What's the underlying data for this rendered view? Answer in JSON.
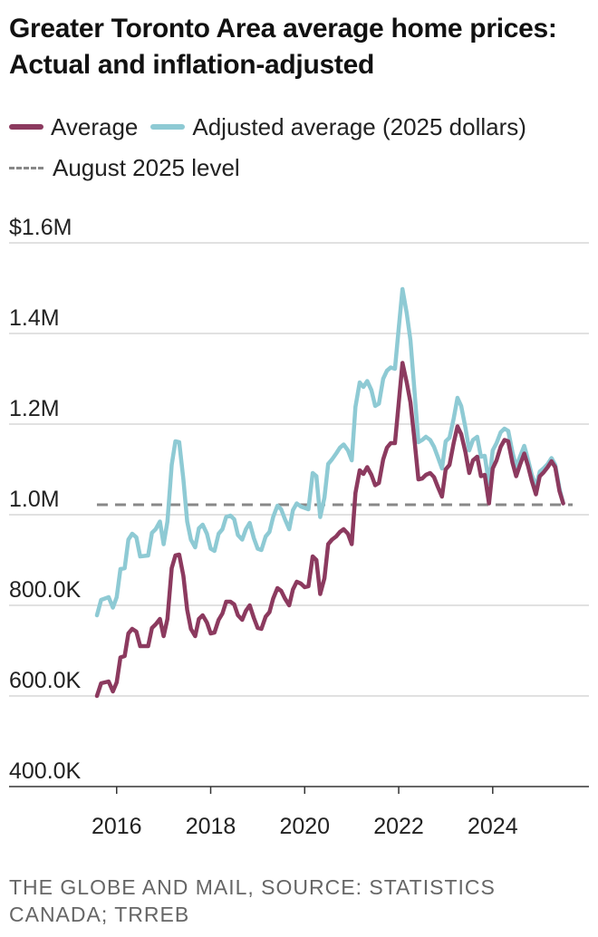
{
  "chart_data": {
    "type": "line",
    "title": "Greater Toronto Area average home prices: Actual and inflation-adjusted",
    "xlabel": "",
    "ylabel": "",
    "xlim": [
      2015.6,
      2025.7
    ],
    "ylim": [
      400000,
      1600000
    ],
    "y_ticks": [
      400000,
      600000,
      800000,
      1000000,
      1200000,
      1400000,
      1600000
    ],
    "y_tick_labels": [
      "400.0K",
      "600.0K",
      "800.0K",
      "1.0M",
      "1.2M",
      "1.4M",
      "$1.6M"
    ],
    "x_ticks": [
      2016,
      2018,
      2020,
      2022,
      2024
    ],
    "x_tick_labels": [
      "2016",
      "2018",
      "2020",
      "2022",
      "2024"
    ],
    "grid": true,
    "reference_line": {
      "name": "August 2025 level",
      "value": 1022000,
      "color": "#888888"
    },
    "series": [
      {
        "name": "Average",
        "color": "#8c3a5f",
        "points": [
          [
            2015.58,
            600000
          ],
          [
            2015.67,
            628000
          ],
          [
            2015.83,
            632000
          ],
          [
            2015.92,
            610000
          ],
          [
            2016.0,
            630000
          ],
          [
            2016.08,
            685000
          ],
          [
            2016.17,
            688000
          ],
          [
            2016.25,
            738000
          ],
          [
            2016.33,
            748000
          ],
          [
            2016.42,
            742000
          ],
          [
            2016.5,
            710000
          ],
          [
            2016.67,
            710000
          ],
          [
            2016.75,
            750000
          ],
          [
            2016.83,
            758000
          ],
          [
            2016.92,
            770000
          ],
          [
            2017.0,
            732000
          ],
          [
            2017.08,
            770000
          ],
          [
            2017.17,
            882000
          ],
          [
            2017.25,
            910000
          ],
          [
            2017.33,
            912000
          ],
          [
            2017.42,
            865000
          ],
          [
            2017.5,
            790000
          ],
          [
            2017.58,
            748000
          ],
          [
            2017.67,
            732000
          ],
          [
            2017.75,
            770000
          ],
          [
            2017.83,
            778000
          ],
          [
            2017.92,
            762000
          ],
          [
            2018.0,
            738000
          ],
          [
            2018.08,
            740000
          ],
          [
            2018.17,
            768000
          ],
          [
            2018.25,
            782000
          ],
          [
            2018.33,
            808000
          ],
          [
            2018.42,
            808000
          ],
          [
            2018.5,
            802000
          ],
          [
            2018.58,
            778000
          ],
          [
            2018.67,
            768000
          ],
          [
            2018.75,
            788000
          ],
          [
            2018.83,
            800000
          ],
          [
            2018.92,
            772000
          ],
          [
            2019.0,
            750000
          ],
          [
            2019.08,
            748000
          ],
          [
            2019.17,
            775000
          ],
          [
            2019.25,
            785000
          ],
          [
            2019.33,
            815000
          ],
          [
            2019.42,
            838000
          ],
          [
            2019.5,
            832000
          ],
          [
            2019.58,
            815000
          ],
          [
            2019.67,
            800000
          ],
          [
            2019.75,
            835000
          ],
          [
            2019.83,
            852000
          ],
          [
            2019.92,
            848000
          ],
          [
            2020.0,
            840000
          ],
          [
            2020.08,
            842000
          ],
          [
            2020.17,
            908000
          ],
          [
            2020.25,
            900000
          ],
          [
            2020.33,
            825000
          ],
          [
            2020.42,
            860000
          ],
          [
            2020.5,
            935000
          ],
          [
            2020.58,
            945000
          ],
          [
            2020.67,
            952000
          ],
          [
            2020.75,
            962000
          ],
          [
            2020.83,
            968000
          ],
          [
            2020.92,
            958000
          ],
          [
            2021.0,
            935000
          ],
          [
            2021.08,
            1048000
          ],
          [
            2021.17,
            1098000
          ],
          [
            2021.25,
            1090000
          ],
          [
            2021.33,
            1105000
          ],
          [
            2021.42,
            1088000
          ],
          [
            2021.5,
            1065000
          ],
          [
            2021.58,
            1070000
          ],
          [
            2021.67,
            1122000
          ],
          [
            2021.75,
            1148000
          ],
          [
            2021.83,
            1158000
          ],
          [
            2021.92,
            1158000
          ],
          [
            2022.0,
            1245000
          ],
          [
            2022.08,
            1335000
          ],
          [
            2022.17,
            1292000
          ],
          [
            2022.25,
            1248000
          ],
          [
            2022.33,
            1170000
          ],
          [
            2022.42,
            1078000
          ],
          [
            2022.5,
            1080000
          ],
          [
            2022.58,
            1088000
          ],
          [
            2022.67,
            1092000
          ],
          [
            2022.75,
            1083000
          ],
          [
            2022.83,
            1062000
          ],
          [
            2022.92,
            1040000
          ],
          [
            2023.0,
            1100000
          ],
          [
            2023.08,
            1110000
          ],
          [
            2023.17,
            1158000
          ],
          [
            2023.25,
            1195000
          ],
          [
            2023.33,
            1178000
          ],
          [
            2023.42,
            1138000
          ],
          [
            2023.5,
            1092000
          ],
          [
            2023.58,
            1120000
          ],
          [
            2023.67,
            1128000
          ],
          [
            2023.75,
            1085000
          ],
          [
            2023.83,
            1088000
          ],
          [
            2023.92,
            1025000
          ],
          [
            2024.0,
            1102000
          ],
          [
            2024.08,
            1120000
          ],
          [
            2024.17,
            1150000
          ],
          [
            2024.25,
            1165000
          ],
          [
            2024.33,
            1162000
          ],
          [
            2024.42,
            1115000
          ],
          [
            2024.5,
            1085000
          ],
          [
            2024.58,
            1110000
          ],
          [
            2024.67,
            1135000
          ],
          [
            2024.75,
            1108000
          ],
          [
            2024.83,
            1075000
          ],
          [
            2024.92,
            1045000
          ],
          [
            2025.0,
            1085000
          ],
          [
            2025.08,
            1093000
          ],
          [
            2025.17,
            1105000
          ],
          [
            2025.25,
            1118000
          ],
          [
            2025.33,
            1105000
          ],
          [
            2025.42,
            1052000
          ],
          [
            2025.5,
            1025000
          ]
        ]
      },
      {
        "name": "Adjusted average (2025 dollars)",
        "color": "#8ecad4",
        "points": [
          [
            2015.58,
            778000
          ],
          [
            2015.67,
            812000
          ],
          [
            2015.83,
            818000
          ],
          [
            2015.92,
            795000
          ],
          [
            2016.0,
            818000
          ],
          [
            2016.08,
            880000
          ],
          [
            2016.17,
            882000
          ],
          [
            2016.25,
            945000
          ],
          [
            2016.33,
            958000
          ],
          [
            2016.42,
            950000
          ],
          [
            2016.5,
            908000
          ],
          [
            2016.67,
            910000
          ],
          [
            2016.75,
            960000
          ],
          [
            2016.83,
            968000
          ],
          [
            2016.92,
            985000
          ],
          [
            2017.0,
            935000
          ],
          [
            2017.08,
            985000
          ],
          [
            2017.17,
            1110000
          ],
          [
            2017.25,
            1162000
          ],
          [
            2017.33,
            1160000
          ],
          [
            2017.42,
            1078000
          ],
          [
            2017.5,
            985000
          ],
          [
            2017.58,
            945000
          ],
          [
            2017.67,
            928000
          ],
          [
            2017.75,
            970000
          ],
          [
            2017.83,
            978000
          ],
          [
            2017.92,
            958000
          ],
          [
            2018.0,
            925000
          ],
          [
            2018.08,
            920000
          ],
          [
            2018.17,
            958000
          ],
          [
            2018.25,
            968000
          ],
          [
            2018.33,
            995000
          ],
          [
            2018.42,
            998000
          ],
          [
            2018.5,
            990000
          ],
          [
            2018.58,
            955000
          ],
          [
            2018.67,
            945000
          ],
          [
            2018.75,
            968000
          ],
          [
            2018.83,
            982000
          ],
          [
            2018.92,
            948000
          ],
          [
            2019.0,
            925000
          ],
          [
            2019.08,
            922000
          ],
          [
            2019.17,
            952000
          ],
          [
            2019.25,
            962000
          ],
          [
            2019.33,
            995000
          ],
          [
            2019.42,
            1020000
          ],
          [
            2019.5,
            1012000
          ],
          [
            2019.58,
            990000
          ],
          [
            2019.67,
            968000
          ],
          [
            2019.75,
            1010000
          ],
          [
            2019.83,
            1025000
          ],
          [
            2019.92,
            1018000
          ],
          [
            2020.0,
            1015000
          ],
          [
            2020.08,
            1012000
          ],
          [
            2020.17,
            1092000
          ],
          [
            2020.25,
            1085000
          ],
          [
            2020.33,
            995000
          ],
          [
            2020.42,
            1038000
          ],
          [
            2020.5,
            1112000
          ],
          [
            2020.58,
            1122000
          ],
          [
            2020.67,
            1135000
          ],
          [
            2020.75,
            1148000
          ],
          [
            2020.83,
            1155000
          ],
          [
            2020.92,
            1142000
          ],
          [
            2021.0,
            1120000
          ],
          [
            2021.08,
            1238000
          ],
          [
            2021.17,
            1292000
          ],
          [
            2021.25,
            1282000
          ],
          [
            2021.33,
            1295000
          ],
          [
            2021.42,
            1275000
          ],
          [
            2021.5,
            1240000
          ],
          [
            2021.58,
            1245000
          ],
          [
            2021.67,
            1300000
          ],
          [
            2021.75,
            1318000
          ],
          [
            2021.83,
            1325000
          ],
          [
            2021.92,
            1322000
          ],
          [
            2022.0,
            1410000
          ],
          [
            2022.08,
            1498000
          ],
          [
            2022.17,
            1445000
          ],
          [
            2022.25,
            1385000
          ],
          [
            2022.33,
            1280000
          ],
          [
            2022.42,
            1160000
          ],
          [
            2022.5,
            1165000
          ],
          [
            2022.58,
            1172000
          ],
          [
            2022.67,
            1165000
          ],
          [
            2022.75,
            1150000
          ],
          [
            2022.83,
            1128000
          ],
          [
            2022.92,
            1102000
          ],
          [
            2023.0,
            1162000
          ],
          [
            2023.08,
            1170000
          ],
          [
            2023.17,
            1212000
          ],
          [
            2023.25,
            1258000
          ],
          [
            2023.33,
            1240000
          ],
          [
            2023.42,
            1192000
          ],
          [
            2023.5,
            1142000
          ],
          [
            2023.58,
            1165000
          ],
          [
            2023.67,
            1172000
          ],
          [
            2023.75,
            1128000
          ],
          [
            2023.83,
            1130000
          ],
          [
            2023.92,
            1068000
          ],
          [
            2024.0,
            1142000
          ],
          [
            2024.08,
            1158000
          ],
          [
            2024.17,
            1182000
          ],
          [
            2024.25,
            1190000
          ],
          [
            2024.33,
            1185000
          ],
          [
            2024.42,
            1138000
          ],
          [
            2024.5,
            1105000
          ],
          [
            2024.58,
            1128000
          ],
          [
            2024.67,
            1152000
          ],
          [
            2024.75,
            1122000
          ],
          [
            2024.83,
            1088000
          ],
          [
            2024.92,
            1062000
          ],
          [
            2025.0,
            1095000
          ],
          [
            2025.08,
            1102000
          ],
          [
            2025.17,
            1112000
          ],
          [
            2025.25,
            1125000
          ],
          [
            2025.33,
            1110000
          ],
          [
            2025.42,
            1058000
          ],
          [
            2025.5,
            1025000
          ]
        ]
      }
    ]
  },
  "legend": {
    "average": "Average",
    "adjusted": "Adjusted average (2025 dollars)",
    "reference": "August 2025 level"
  },
  "source": "THE GLOBE AND MAIL, SOURCE: STATISTICS CANADA; TRREB"
}
